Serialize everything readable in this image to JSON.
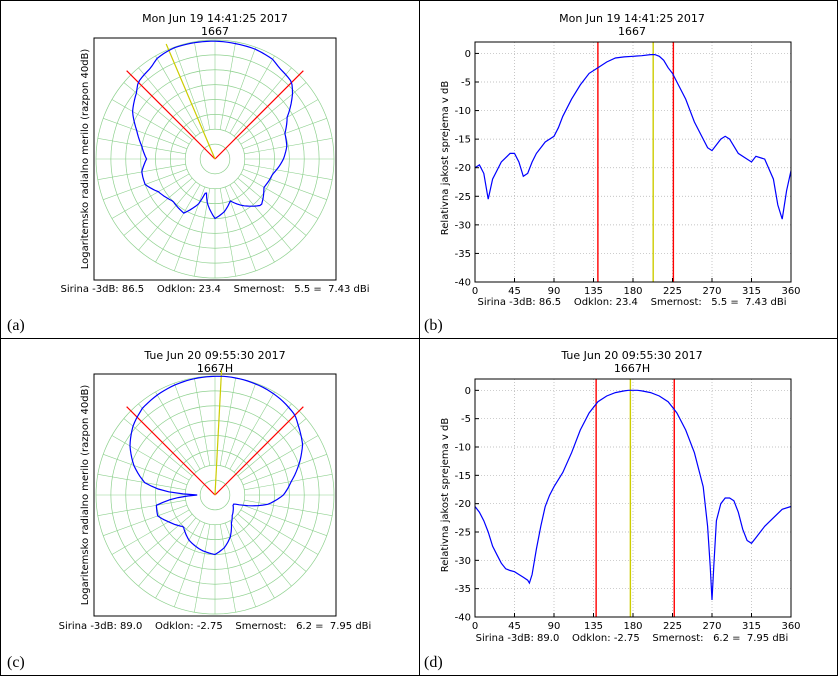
{
  "chart_data": [
    {
      "id": "a",
      "type": "polar-line",
      "panel_label": "(a)",
      "title": "Mon Jun 19 14:41:25 2017",
      "subtitle": "1667",
      "ylabel": "Logaritemsko radialno merilo (razpon 40dB)",
      "footer": "Sirina -3dB: 86.5    Odklon: 23.4    Smernost:   5.5 =  7.43 dBi",
      "r_range_db": [
        -40,
        0
      ],
      "angle_unit": "degrees",
      "markers": {
        "beam_left": 135,
        "beam_right": 225,
        "direction": 203
      },
      "series": [
        {
          "color": "#0000ff",
          "angles": [
            0,
            10,
            20,
            30,
            45,
            60,
            75,
            90,
            100,
            110,
            120,
            130,
            135,
            145,
            150,
            160,
            170,
            180,
            190,
            200,
            205,
            210,
            215,
            220,
            225,
            230,
            240,
            250,
            260,
            270,
            280,
            290,
            300,
            315,
            330,
            340,
            345,
            350,
            360
          ],
          "values": [
            -20,
            -22,
            -25,
            -22,
            -18,
            -21,
            -20,
            -17,
            -15.5,
            -15,
            -12,
            -6,
            -3.5,
            -2.5,
            -1.3,
            -0.7,
            -0.6,
            -0.4,
            -0.3,
            -0.2,
            -0.5,
            -1.0,
            -2.5,
            -3.0,
            -3.5,
            -5.5,
            -8,
            -12,
            -15,
            -17,
            -15,
            -15,
            -18,
            -20,
            -19,
            -24,
            -29,
            -25,
            -20
          ]
        }
      ]
    },
    {
      "id": "b",
      "type": "line",
      "panel_label": "(b)",
      "title": "Mon Jun 19 14:41:25 2017",
      "subtitle": "1667",
      "ylabel": "Relativna jakost sprejema v dB",
      "footer": "Sirina -3dB: 86.5    Odklon: 23.4    Smernost:   5.5 =  7.43 dBi",
      "xlim": [
        0,
        360
      ],
      "ylim": [
        -40,
        2
      ],
      "xticks": [
        0,
        45,
        90,
        135,
        180,
        225,
        270,
        315,
        360
      ],
      "yticks": [
        0,
        -5,
        -10,
        -15,
        -20,
        -25,
        -30,
        -35,
        -40
      ],
      "grid": true,
      "vlines": [
        {
          "x": 140,
          "color": "#ff0000"
        },
        {
          "x": 203,
          "color": "#cccc00"
        },
        {
          "x": 226,
          "color": "#ff0000"
        }
      ],
      "series": [
        {
          "color": "#0000ff",
          "x": [
            0,
            5,
            10,
            15,
            20,
            30,
            40,
            45,
            50,
            55,
            60,
            65,
            70,
            75,
            80,
            85,
            90,
            95,
            100,
            110,
            120,
            130,
            140,
            150,
            160,
            170,
            180,
            190,
            200,
            205,
            210,
            215,
            220,
            225,
            230,
            240,
            250,
            260,
            265,
            270,
            275,
            280,
            285,
            290,
            300,
            310,
            315,
            320,
            330,
            340,
            345,
            350,
            355,
            360
          ],
          "y": [
            -20,
            -19.5,
            -21,
            -25.5,
            -22,
            -19,
            -17.5,
            -17.5,
            -19,
            -21.5,
            -21,
            -19,
            -17.5,
            -16.5,
            -15.5,
            -15,
            -14.5,
            -13,
            -11,
            -8,
            -5.5,
            -3.5,
            -2.5,
            -1.5,
            -0.8,
            -0.6,
            -0.5,
            -0.4,
            -0.2,
            -0.2,
            -0.5,
            -1.2,
            -2.5,
            -3.5,
            -5,
            -8,
            -12,
            -15,
            -16.5,
            -17,
            -16,
            -15,
            -14.5,
            -15,
            -17.5,
            -18.5,
            -19,
            -18,
            -18.5,
            -22,
            -26.5,
            -29,
            -24,
            -20.5
          ]
        }
      ]
    },
    {
      "id": "c",
      "type": "polar-line",
      "panel_label": "(c)",
      "title": "Tue Jun 20 09:55:30 2017",
      "subtitle": "1667H",
      "ylabel": "Logaritemsko radialno merilo (razpon 40dB)",
      "footer": "Sirina -3dB: 89.0    Odklon: -2.75    Smernost:   6.2 =  7.95 dBi",
      "r_range_db": [
        -40,
        0
      ],
      "angle_unit": "degrees",
      "markers": {
        "beam_left": 135,
        "beam_right": 225,
        "direction": 177
      },
      "series": [
        {
          "color": "#0000ff",
          "angles": [
            0,
            10,
            20,
            30,
            40,
            50,
            60,
            65,
            70,
            80,
            90,
            100,
            110,
            120,
            130,
            135,
            145,
            155,
            165,
            175,
            180,
            190,
            200,
            210,
            220,
            225,
            230,
            240,
            250,
            260,
            265,
            270,
            275,
            280,
            290,
            300,
            315,
            330,
            345,
            360
          ],
          "values": [
            -20,
            -22,
            -25,
            -29,
            -31,
            -32,
            -33,
            -33,
            -30,
            -22,
            -17,
            -14,
            -10,
            -6,
            -3.5,
            -2,
            -1,
            -0.4,
            -0.1,
            0,
            -0.1,
            -0.3,
            -0.6,
            -1.2,
            -2,
            -3,
            -4,
            -7,
            -11,
            -16,
            -22,
            -34,
            -26,
            -20,
            -19.5,
            -22,
            -25,
            -22.5,
            -21,
            -20
          ]
        }
      ]
    },
    {
      "id": "d",
      "type": "line",
      "panel_label": "(d)",
      "title": "Tue Jun 20 09:55:30 2017",
      "subtitle": "1667H",
      "ylabel": "Relativna jakost sprejema v dB",
      "footer": "Sirina -3dB: 89.0    Odklon: -2.75    Smernost:   6.2 =  7.95 dBi",
      "xlim": [
        0,
        360
      ],
      "ylim": [
        -40,
        2
      ],
      "xticks": [
        0,
        45,
        90,
        135,
        180,
        225,
        270,
        315,
        360
      ],
      "yticks": [
        0,
        -5,
        -10,
        -15,
        -20,
        -25,
        -30,
        -35,
        -40
      ],
      "grid": true,
      "vlines": [
        {
          "x": 138,
          "color": "#ff0000"
        },
        {
          "x": 177,
          "color": "#cccc00"
        },
        {
          "x": 227,
          "color": "#ff0000"
        }
      ],
      "series": [
        {
          "color": "#0000ff",
          "x": [
            0,
            5,
            10,
            15,
            20,
            25,
            30,
            35,
            40,
            45,
            50,
            55,
            60,
            62,
            65,
            70,
            75,
            80,
            85,
            90,
            100,
            110,
            120,
            130,
            140,
            150,
            160,
            170,
            175,
            180,
            185,
            190,
            200,
            210,
            220,
            225,
            230,
            240,
            250,
            260,
            265,
            268,
            270,
            272,
            275,
            280,
            285,
            290,
            295,
            300,
            305,
            310,
            315,
            320,
            325,
            330,
            340,
            350,
            360
          ],
          "y": [
            -20.5,
            -21.5,
            -23,
            -25,
            -27.5,
            -29,
            -30.5,
            -31.5,
            -31.8,
            -32,
            -32.5,
            -33,
            -33.5,
            -34,
            -32.5,
            -28,
            -24,
            -20.5,
            -18.5,
            -17,
            -14.5,
            -11,
            -7,
            -4,
            -2,
            -1,
            -0.4,
            -0.1,
            0,
            0,
            0,
            -0.1,
            -0.4,
            -1,
            -2,
            -3,
            -4,
            -7,
            -11,
            -17,
            -24,
            -31,
            -37,
            -31,
            -23,
            -20,
            -19,
            -19,
            -19.5,
            -21.5,
            -24.5,
            -26.5,
            -27,
            -26,
            -25,
            -24,
            -22.5,
            -21,
            -20.5
          ]
        }
      ]
    }
  ]
}
